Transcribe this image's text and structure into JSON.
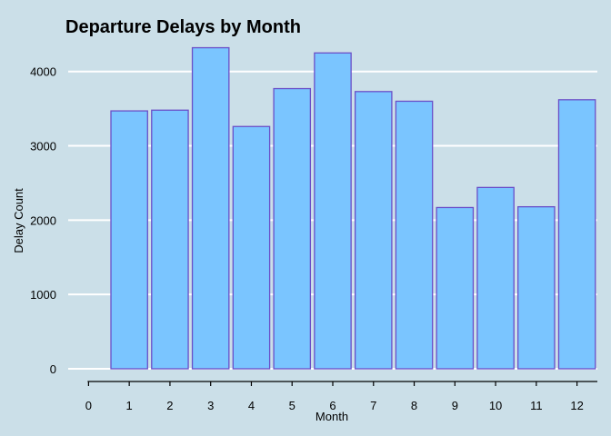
{
  "chart_data": {
    "type": "bar",
    "title": "Departure Delays by Month",
    "xlabel": "Month",
    "ylabel": "Delay Count",
    "categories": [
      1,
      2,
      3,
      4,
      5,
      6,
      7,
      8,
      9,
      10,
      11,
      12
    ],
    "values": [
      3470,
      3480,
      4320,
      3260,
      3770,
      4250,
      3730,
      3600,
      2170,
      2440,
      2180,
      3620
    ],
    "xlim": [
      0,
      13
    ],
    "ylim": [
      0,
      4400
    ],
    "x_ticks": [
      0,
      1,
      2,
      3,
      4,
      5,
      6,
      7,
      8,
      9,
      10,
      11,
      12
    ],
    "y_ticks": [
      0,
      1000,
      2000,
      3000,
      4000
    ],
    "grid": true,
    "legend": "none",
    "colors": {
      "background": "#cbdfe8",
      "bar_fill": "#7ac5ff",
      "bar_outline": "#6a4fc8",
      "grid": "#ffffff"
    }
  }
}
